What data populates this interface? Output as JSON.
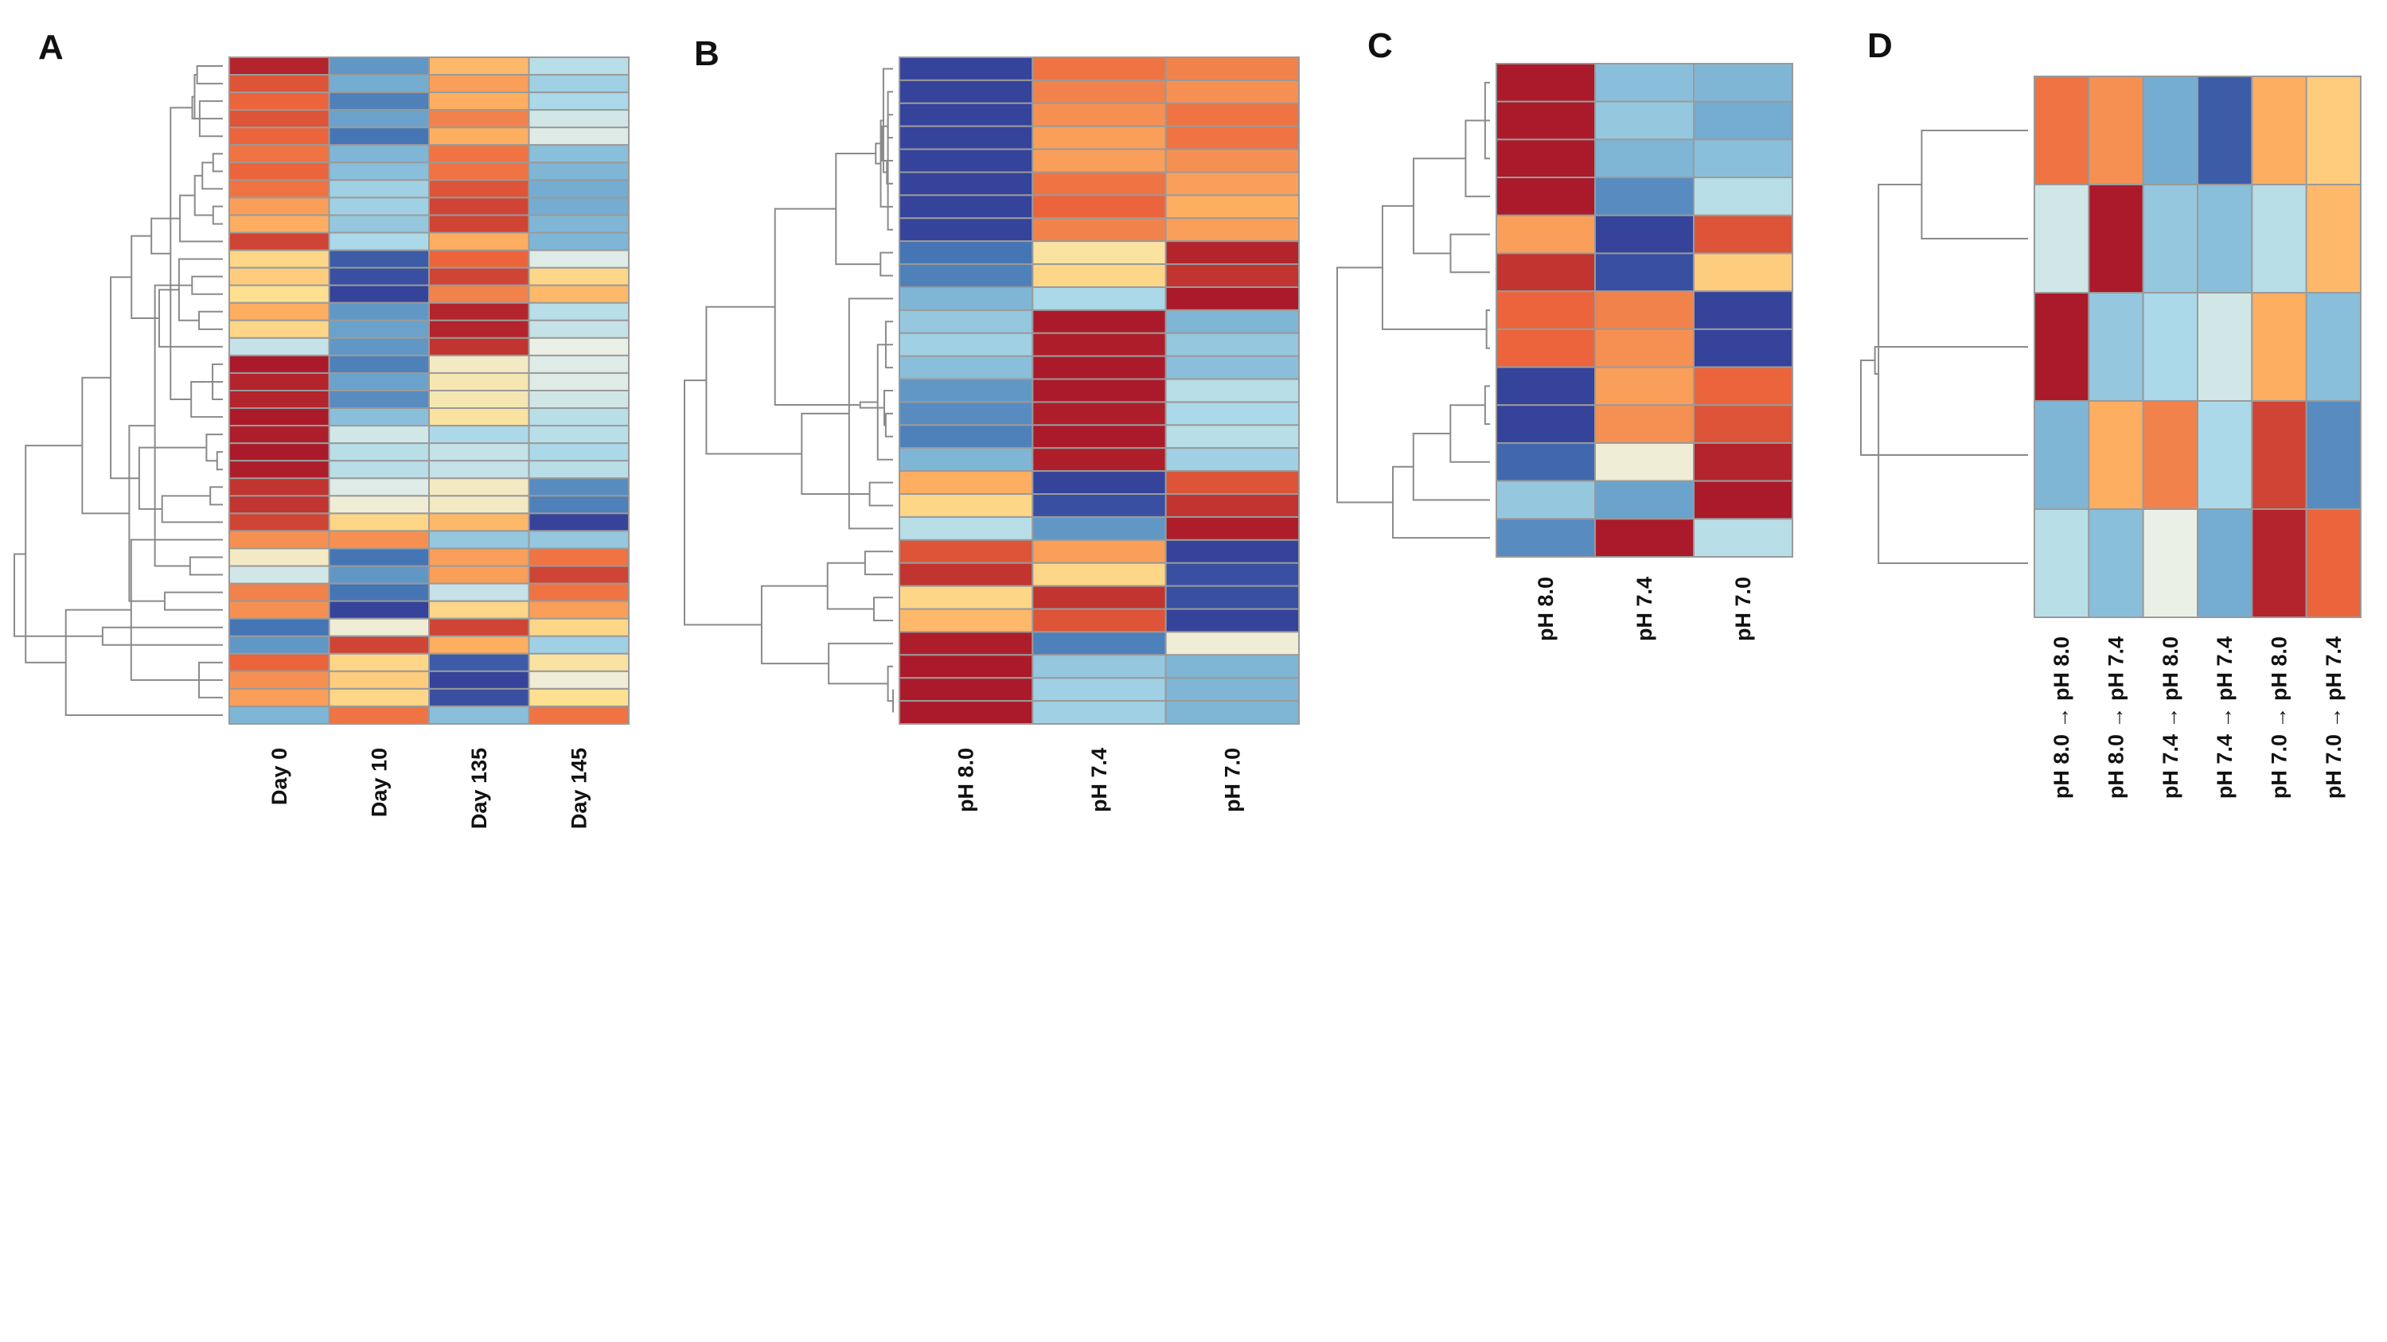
{
  "figure": {
    "description_type": "heatmap-panels"
  },
  "chart_data": [
    {
      "type": "heatmap",
      "panel": "A",
      "title": "",
      "columns": [
        "Day 0",
        "Day 10",
        "Day 135",
        "Day 145"
      ],
      "value_scale": "diverging, -1 (blue) to 1 (red)",
      "dendrogram": "rows",
      "matrix": [
        [
          0.95,
          -0.6,
          0.45,
          -0.2
        ],
        [
          0.8,
          -0.5,
          0.55,
          -0.3
        ],
        [
          0.75,
          -0.7,
          0.5,
          -0.25
        ],
        [
          0.8,
          -0.55,
          0.65,
          -0.1
        ],
        [
          0.75,
          -0.75,
          0.5,
          -0.05
        ],
        [
          0.7,
          -0.45,
          0.7,
          -0.4
        ],
        [
          0.75,
          -0.4,
          0.7,
          -0.45
        ],
        [
          0.7,
          -0.3,
          0.8,
          -0.5
        ],
        [
          0.55,
          -0.3,
          0.85,
          -0.5
        ],
        [
          0.5,
          -0.35,
          0.85,
          -0.45
        ],
        [
          0.85,
          -0.25,
          0.5,
          -0.45
        ],
        [
          0.3,
          -0.85,
          0.75,
          -0.05
        ],
        [
          0.35,
          -0.9,
          0.85,
          0.3
        ],
        [
          0.25,
          -0.95,
          0.65,
          0.45
        ],
        [
          0.5,
          -0.6,
          0.95,
          -0.2
        ],
        [
          0.3,
          -0.55,
          0.95,
          -0.15
        ],
        [
          -0.15,
          -0.6,
          0.9,
          0.0
        ],
        [
          0.98,
          -0.7,
          0.1,
          -0.05
        ],
        [
          0.95,
          -0.55,
          0.15,
          -0.05
        ],
        [
          0.95,
          -0.65,
          0.15,
          -0.1
        ],
        [
          0.98,
          -0.4,
          0.2,
          -0.2
        ],
        [
          0.97,
          -0.1,
          -0.25,
          -0.2
        ],
        [
          0.98,
          -0.2,
          -0.15,
          -0.25
        ],
        [
          0.97,
          -0.2,
          -0.15,
          -0.2
        ],
        [
          0.9,
          -0.05,
          0.1,
          -0.65
        ],
        [
          0.9,
          0.05,
          0.1,
          -0.7
        ],
        [
          0.85,
          0.3,
          0.45,
          -0.95
        ],
        [
          0.6,
          0.6,
          -0.35,
          -0.35
        ],
        [
          0.1,
          -0.75,
          0.55,
          0.7
        ],
        [
          -0.1,
          -0.6,
          0.55,
          0.85
        ],
        [
          0.65,
          -0.75,
          -0.15,
          0.7
        ],
        [
          0.6,
          -0.95,
          0.3,
          0.55
        ],
        [
          -0.75,
          0.05,
          0.85,
          0.3
        ],
        [
          -0.6,
          0.85,
          0.5,
          -0.3
        ],
        [
          0.75,
          0.3,
          -0.85,
          0.2
        ],
        [
          0.6,
          0.35,
          -0.95,
          0.05
        ],
        [
          0.55,
          0.3,
          -0.9,
          0.25
        ],
        [
          -0.45,
          0.7,
          -0.4,
          0.7
        ]
      ]
    },
    {
      "type": "heatmap",
      "panel": "B",
      "title": "",
      "columns": [
        "pH 8.0",
        "pH 7.4",
        "pH 7.0"
      ],
      "value_scale": "diverging, -1 (blue) to 1 (red)",
      "dendrogram": "rows",
      "matrix": [
        [
          -0.95,
          0.7,
          0.65
        ],
        [
          -0.95,
          0.65,
          0.6
        ],
        [
          -0.95,
          0.6,
          0.7
        ],
        [
          -0.95,
          0.55,
          0.7
        ],
        [
          -0.95,
          0.55,
          0.6
        ],
        [
          -0.95,
          0.7,
          0.55
        ],
        [
          -0.95,
          0.75,
          0.5
        ],
        [
          -0.95,
          0.65,
          0.55
        ],
        [
          -0.75,
          0.2,
          0.95
        ],
        [
          -0.7,
          0.3,
          0.9
        ],
        [
          -0.45,
          -0.25,
          0.98
        ],
        [
          -0.35,
          0.98,
          -0.45
        ],
        [
          -0.3,
          0.97,
          -0.35
        ],
        [
          -0.4,
          0.98,
          -0.4
        ],
        [
          -0.6,
          0.98,
          -0.2
        ],
        [
          -0.65,
          0.97,
          -0.25
        ],
        [
          -0.7,
          0.98,
          -0.2
        ],
        [
          -0.45,
          0.97,
          -0.3
        ],
        [
          0.5,
          -0.95,
          0.8
        ],
        [
          0.3,
          -0.9,
          0.9
        ],
        [
          -0.2,
          -0.6,
          0.97
        ],
        [
          0.8,
          0.55,
          -0.95
        ],
        [
          0.9,
          0.3,
          -0.9
        ],
        [
          0.3,
          0.9,
          -0.9
        ],
        [
          0.45,
          0.8,
          -0.95
        ],
        [
          0.97,
          -0.7,
          0.05
        ],
        [
          0.98,
          -0.35,
          -0.45
        ],
        [
          0.98,
          -0.3,
          -0.45
        ],
        [
          0.98,
          -0.3,
          -0.45
        ]
      ]
    },
    {
      "type": "heatmap",
      "panel": "C",
      "title": "",
      "columns": [
        "pH 8.0",
        "pH 7.4",
        "pH 7.0"
      ],
      "value_scale": "diverging, -1 (blue) to 1 (red)",
      "dendrogram": "rows",
      "matrix": [
        [
          0.98,
          -0.4,
          -0.45
        ],
        [
          0.98,
          -0.35,
          -0.5
        ],
        [
          0.98,
          -0.45,
          -0.4
        ],
        [
          0.98,
          -0.65,
          -0.2
        ],
        [
          0.55,
          -0.95,
          0.8
        ],
        [
          0.9,
          -0.9,
          0.35
        ],
        [
          0.75,
          0.65,
          -0.95
        ],
        [
          0.75,
          0.6,
          -0.95
        ],
        [
          -0.95,
          0.55,
          0.75
        ],
        [
          -0.95,
          0.6,
          0.8
        ],
        [
          -0.8,
          0.05,
          0.95
        ],
        [
          -0.35,
          -0.55,
          0.98
        ],
        [
          -0.65,
          0.98,
          -0.2
        ]
      ]
    },
    {
      "type": "heatmap",
      "panel": "D",
      "title": "",
      "columns": [
        "pH 8.0 → pH 8.0",
        "pH 8.0 → pH 7.4",
        "pH 7.4 → pH 8.0",
        "pH 7.4 → pH 7.4",
        "pH 7.0 → pH 8.0",
        "pH 7.0 → pH 7.4"
      ],
      "value_scale": "diverging, -1 (blue) to 1 (red)",
      "dendrogram": "rows",
      "matrix": [
        [
          0.7,
          0.6,
          -0.5,
          -0.85,
          0.5,
          0.35
        ],
        [
          -0.1,
          0.98,
          -0.35,
          -0.4,
          -0.2,
          0.45
        ],
        [
          0.98,
          -0.35,
          -0.25,
          -0.1,
          0.5,
          -0.4
        ],
        [
          -0.45,
          0.5,
          0.65,
          -0.25,
          0.85,
          -0.65
        ],
        [
          -0.2,
          -0.4,
          0.0,
          -0.5,
          0.95,
          0.75
        ]
      ]
    }
  ]
}
